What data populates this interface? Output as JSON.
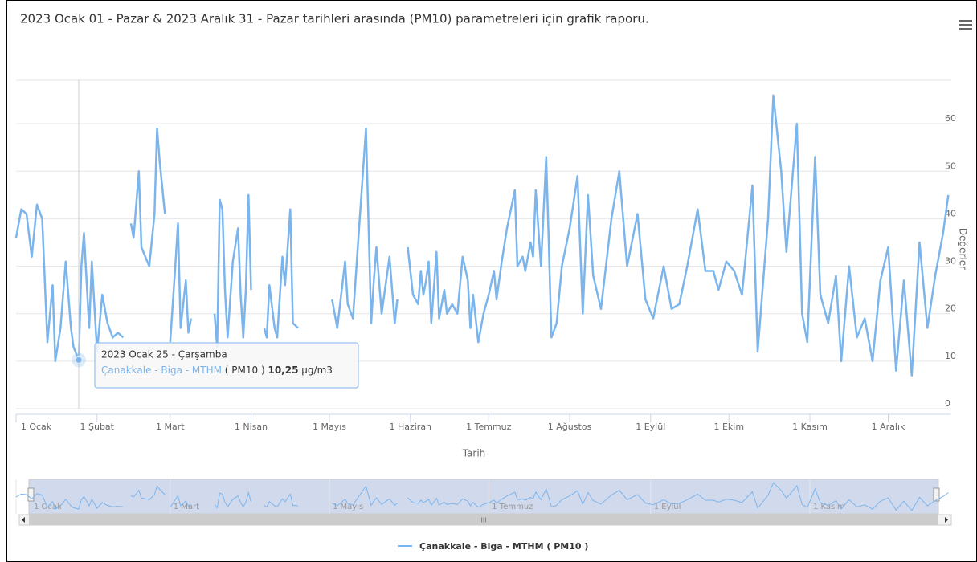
{
  "chart_data": {
    "type": "line",
    "title": "2023 Ocak 01 - Pazar & 2023 Aralık 31 - Pazar tarihleri arasında (PM10) parametreleri için grafik raporu.",
    "x_label": "Tarih",
    "y_label": "Değerler",
    "x": [
      1,
      3,
      5,
      7,
      9,
      11,
      13,
      15,
      16,
      18,
      20,
      22,
      23,
      25,
      26,
      27,
      29,
      30,
      32,
      34,
      36,
      38,
      40,
      42,
      43,
      45,
      46,
      48,
      49,
      52,
      54,
      55,
      56,
      58,
      59,
      60,
      62,
      63,
      64,
      66,
      67,
      68,
      69,
      77,
      78,
      79,
      80,
      81,
      82,
      84,
      86,
      87,
      88,
      89,
      90,
      91,
      92,
      96,
      97,
      98,
      100,
      101,
      103,
      104,
      106,
      107,
      109,
      110,
      122,
      124,
      127,
      128,
      130,
      132,
      135,
      137,
      138,
      139,
      141,
      144,
      146,
      147,
      148,
      151,
      153,
      155,
      156,
      157,
      158,
      159,
      160,
      162,
      163,
      165,
      166,
      168,
      170,
      172,
      174,
      175,
      176,
      178,
      180,
      182,
      184,
      185,
      187,
      189,
      192,
      193,
      195,
      196,
      198,
      199,
      200,
      202,
      204,
      205,
      206,
      208,
      210,
      213,
      216,
      218,
      220,
      222,
      225,
      229,
      232,
      235,
      239,
      242,
      245,
      249,
      252,
      255,
      258,
      262,
      265,
      268,
      270,
      273,
      276,
      279,
      283,
      285,
      289,
      291,
      294,
      296,
      300,
      302,
      304,
      307,
      309,
      312,
      315,
      317,
      320,
      323,
      326,
      329,
      332,
      335,
      338,
      341,
      344,
      347,
      350,
      353,
      356,
      358
    ],
    "series": [
      {
        "name": "Çanakkale - Biga - MTHM ( PM10 )",
        "color": "#7cb5ec",
        "values": [
          36,
          42,
          41,
          32,
          43,
          40,
          14,
          26,
          10,
          17,
          31,
          17,
          13,
          10.25,
          30,
          37,
          17,
          31,
          12,
          24,
          18,
          15,
          16,
          15,
          null,
          39,
          36,
          50,
          34,
          30,
          41,
          59,
          52,
          41,
          null,
          14,
          30,
          39,
          17,
          27,
          16,
          19,
          null,
          20,
          13,
          44,
          42,
          25,
          15,
          31,
          38,
          24,
          15,
          25,
          45,
          25,
          null,
          17,
          15,
          26,
          17,
          15,
          32,
          26,
          42,
          18,
          17,
          null,
          23,
          17,
          31,
          22,
          19,
          35,
          59,
          18,
          27,
          34,
          20,
          32,
          18,
          23,
          null,
          34,
          24,
          22,
          29,
          24,
          27,
          31,
          18,
          33,
          19,
          25,
          20,
          22,
          20,
          32,
          27,
          17,
          24,
          14,
          20,
          24,
          29,
          23,
          31,
          38,
          46,
          30,
          32,
          29,
          35,
          32,
          46,
          30,
          53,
          35,
          15,
          18,
          30,
          38,
          49,
          20,
          45,
          28,
          21,
          40,
          50,
          30,
          41,
          23,
          19,
          30,
          21,
          22,
          30,
          42,
          29,
          29,
          25,
          31,
          29,
          24,
          47,
          12,
          40,
          66,
          50,
          33,
          60,
          20,
          14,
          53,
          24,
          18,
          28,
          10,
          30,
          15,
          19,
          10,
          27,
          34,
          8,
          27,
          7,
          35,
          17,
          28,
          37,
          45
        ]
      }
    ],
    "xlim": [
      1,
      359
    ],
    "xticks": [
      {
        "value": 1,
        "label": "1 Ocak"
      },
      {
        "value": 32,
        "label": "1 Şubat"
      },
      {
        "value": 60,
        "label": "1 Mart"
      },
      {
        "value": 91,
        "label": "1 Nisan"
      },
      {
        "value": 121,
        "label": "1 Mayıs"
      },
      {
        "value": 152,
        "label": "1 Haziran"
      },
      {
        "value": 182,
        "label": "1 Temmuz"
      },
      {
        "value": 213,
        "label": "1 Ağustos"
      },
      {
        "value": 244,
        "label": "1 Eylül"
      },
      {
        "value": 274,
        "label": "1 Ekim"
      },
      {
        "value": 305,
        "label": "1 Kasım"
      },
      {
        "value": 335,
        "label": "1 Aralık"
      }
    ],
    "ylim": [
      0,
      70
    ],
    "yticks": [
      0,
      10,
      20,
      30,
      40,
      50,
      60
    ],
    "grid": true,
    "navigator": {
      "xticks": [
        {
          "value": 1,
          "label": "1 Ocak"
        },
        {
          "value": 60,
          "label": "1 Mart"
        },
        {
          "value": 121,
          "label": "1 Mayıs"
        },
        {
          "value": 182,
          "label": "1 Temmuz"
        },
        {
          "value": 244,
          "label": "1 Eylül"
        },
        {
          "value": 305,
          "label": "1 Kasım"
        }
      ]
    },
    "tooltip": {
      "x": 25,
      "value": 10.25,
      "value_label": "10,25",
      "title": "2023 Ocak 25 - Çarşamba",
      "series_label": "Çanakkale - Biga - MTHM",
      "param": "( PM10 )",
      "unit": "µg/m3"
    }
  }
}
